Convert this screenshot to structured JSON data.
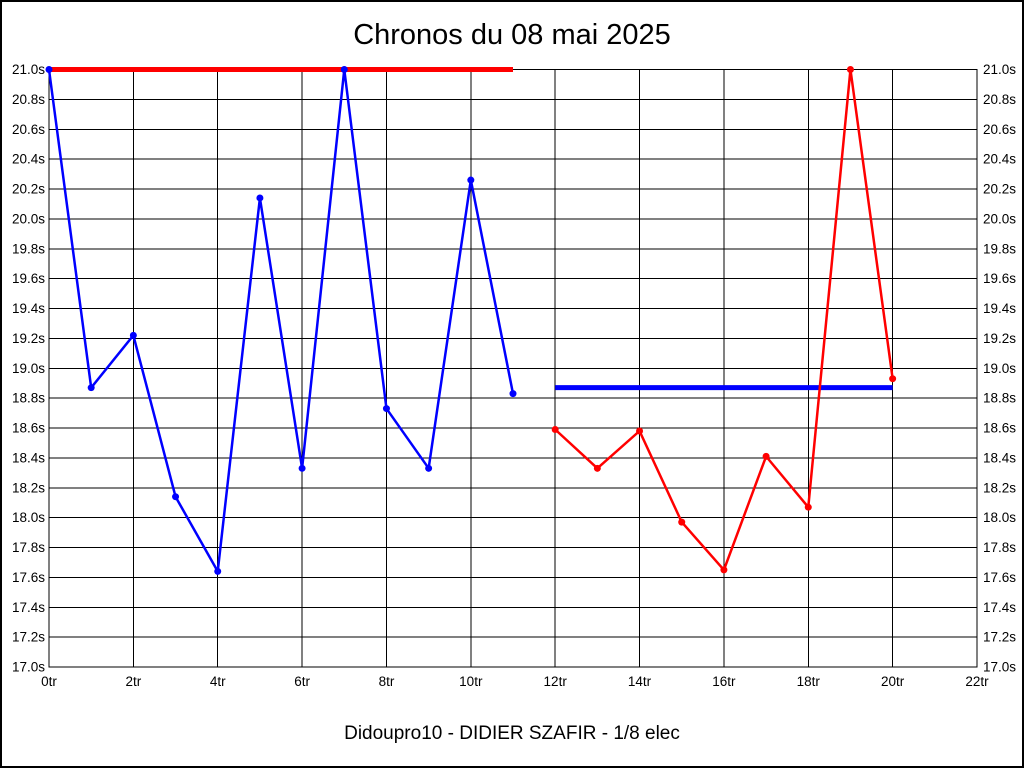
{
  "page": {
    "background": "#ffffff",
    "frame_color": "#000000"
  },
  "chart_data": {
    "type": "line",
    "title": "Chronos du 08 mai 2025",
    "subtitle": "Didoupro10 - DIDIER SZAFIR - 1/8 elec",
    "x_unit": "tr",
    "y_unit": "s",
    "xlim": [
      0,
      22
    ],
    "ylim": [
      17.0,
      21.0
    ],
    "x_tick_step": 2,
    "y_tick_step": 0.2,
    "x_tick_labels": [
      "0tr",
      "2tr",
      "4tr",
      "6tr",
      "8tr",
      "10tr",
      "12tr",
      "14tr",
      "16tr",
      "18tr",
      "20tr",
      "22tr"
    ],
    "y_tick_labels": [
      "21.0s",
      "20.8s",
      "20.6s",
      "20.4s",
      "20.2s",
      "20.0s",
      "19.8s",
      "19.6s",
      "19.4s",
      "19.2s",
      "19.0s",
      "18.8s",
      "18.6s",
      "18.4s",
      "18.2s",
      "18.0s",
      "17.8s",
      "17.6s",
      "17.4s",
      "17.2s",
      "17.0s"
    ],
    "grid": true,
    "grid_color": "#000000",
    "legend": "none",
    "series": [
      {
        "name": "run-1-blue",
        "color": "#0000ff",
        "x": [
          0,
          1,
          2,
          3,
          4,
          5,
          6,
          7,
          8,
          9,
          10,
          11
        ],
        "values": [
          21.0,
          18.87,
          19.22,
          18.14,
          17.64,
          20.14,
          18.33,
          21.0,
          18.73,
          18.33,
          20.26,
          18.83
        ]
      },
      {
        "name": "run-2-red",
        "color": "#ff0000",
        "x": [
          12,
          13,
          14,
          15,
          16,
          17,
          18,
          19,
          20
        ],
        "values": [
          18.59,
          18.33,
          18.58,
          17.97,
          17.65,
          18.41,
          18.07,
          21.0,
          18.93
        ]
      }
    ],
    "reference_lines": [
      {
        "name": "red-ceiling-line",
        "color": "#ff0000",
        "y": 21.0,
        "x_start": 0,
        "x_end": 11
      },
      {
        "name": "blue-best-line",
        "color": "#0000ff",
        "y": 18.87,
        "x_start": 12,
        "x_end": 20
      }
    ]
  }
}
